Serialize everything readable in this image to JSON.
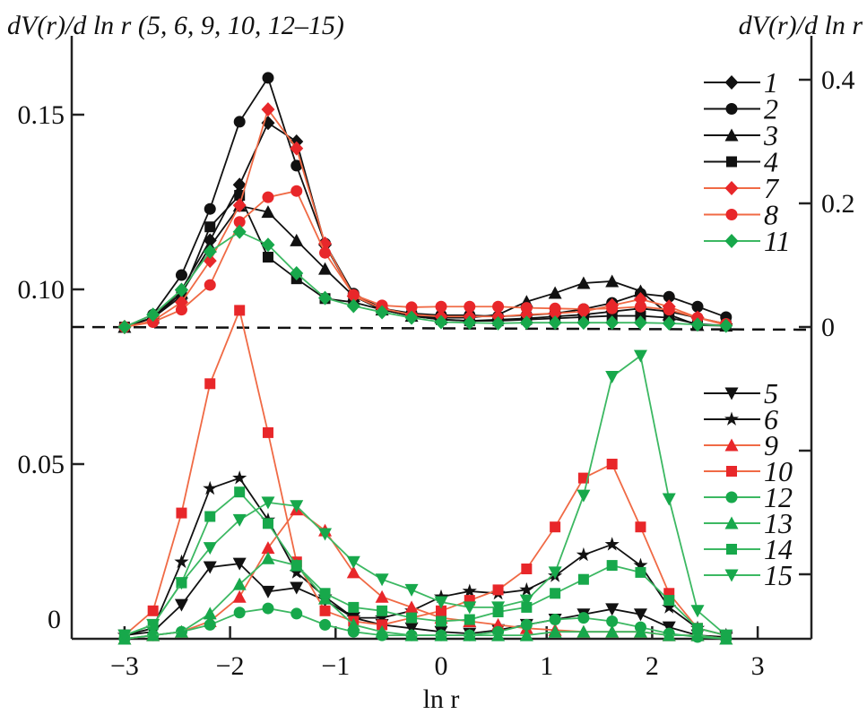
{
  "chart_data": {
    "type": "line",
    "title_left": "dV(r)/d ln r (5, 6, 9, 10, 12–15)",
    "title_right": "dV(r)/d ln r",
    "xlabel": "ln r",
    "xlim": [
      -3.5,
      3.5
    ],
    "x_ticks": [
      "−3",
      "−2",
      "−1",
      "0",
      "1",
      "2",
      "3"
    ],
    "x_tick_values": [
      -3,
      -2,
      -1,
      0,
      1,
      2,
      3
    ],
    "ylim_left": [
      0,
      0.17
    ],
    "y_ticks_left": [
      "0.15",
      "0.10",
      "0.05",
      "0"
    ],
    "y_tick_values_left": [
      0.15,
      0.1,
      0.05,
      0
    ],
    "ylim_right": [
      -0.5,
      0.41
    ],
    "y_ticks_right": [
      "0.4",
      "0.2",
      "0"
    ],
    "y_tick_values_right": [
      0.4,
      0.2,
      0
    ],
    "y_tick_unlabeled_right": [
      -0.2,
      -0.4
    ],
    "baseline_dashed_right": 0,
    "colors": {
      "black": "#111111",
      "red": "#e8272a",
      "red_line": "#f06a45",
      "green": "#17a84b",
      "green_line": "#3cb862"
    },
    "x": [
      -3.0,
      -2.73,
      -2.46,
      -2.19,
      -1.91,
      -1.64,
      -1.37,
      -1.1,
      -0.83,
      -0.56,
      -0.28,
      0.0,
      0.27,
      0.54,
      0.81,
      1.08,
      1.35,
      1.62,
      1.89,
      2.16,
      2.43,
      2.7
    ],
    "series": [
      {
        "name": "1",
        "axis": "right",
        "color": "black",
        "marker": "diamond",
        "values": [
          0,
          0.015,
          0.06,
          0.14,
          0.23,
          0.33,
          0.3,
          0.133,
          0.05,
          0.028,
          0.018,
          0.012,
          0.01,
          0.012,
          0.014,
          0.017,
          0.02,
          0.025,
          0.03,
          0.025,
          0.015,
          0.005
        ]
      },
      {
        "name": "2",
        "axis": "right",
        "color": "black",
        "marker": "circle",
        "values": [
          0,
          0.02,
          0.084,
          0.191,
          0.332,
          0.403,
          0.261,
          0.135,
          0.054,
          0.03,
          0.022,
          0.019,
          0.019,
          0.017,
          0.019,
          0.022,
          0.029,
          0.039,
          0.054,
          0.049,
          0.033,
          0.016
        ]
      },
      {
        "name": "3",
        "axis": "right",
        "color": "black",
        "marker": "triangle-up",
        "values": [
          0,
          0.015,
          0.055,
          0.13,
          0.196,
          0.186,
          0.14,
          0.094,
          0.05,
          0.028,
          0.018,
          0.015,
          0.015,
          0.02,
          0.041,
          0.055,
          0.071,
          0.074,
          0.058,
          0.02,
          0.003,
          0.002
        ]
      },
      {
        "name": "4",
        "axis": "right",
        "color": "black",
        "marker": "square",
        "values": [
          0,
          0.015,
          0.05,
          0.162,
          0.213,
          0.113,
          0.078,
          0.046,
          0.04,
          0.028,
          0.018,
          0.012,
          0.01,
          0.01,
          0.012,
          0.014,
          0.016,
          0.018,
          0.018,
          0.015,
          0.005,
          0.002
        ]
      },
      {
        "name": "7",
        "axis": "right",
        "color": "red",
        "marker": "diamond",
        "values": [
          0,
          0.01,
          0.04,
          0.107,
          0.197,
          0.352,
          0.289,
          0.135,
          0.05,
          0.03,
          0.02,
          0.017,
          0.017,
          0.017,
          0.02,
          0.022,
          0.025,
          0.035,
          0.045,
          0.033,
          0.015,
          0.003
        ]
      },
      {
        "name": "8",
        "axis": "right",
        "color": "red",
        "marker": "circle",
        "values": [
          0,
          0.008,
          0.028,
          0.068,
          0.17,
          0.21,
          0.22,
          0.12,
          0.052,
          0.035,
          0.032,
          0.033,
          0.033,
          0.033,
          0.031,
          0.03,
          0.029,
          0.03,
          0.033,
          0.028,
          0.015,
          0.005
        ]
      },
      {
        "name": "11",
        "axis": "right",
        "color": "green",
        "marker": "diamond",
        "values": [
          0,
          0.02,
          0.06,
          0.122,
          0.154,
          0.133,
          0.087,
          0.047,
          0.034,
          0.024,
          0.015,
          0.008,
          0.007,
          0.006,
          0.007,
          0.007,
          0.007,
          0.007,
          0.007,
          0.006,
          0.004,
          0.002
        ]
      },
      {
        "name": "5",
        "axis": "left",
        "color": "black",
        "marker": "triangle-down",
        "values": [
          0.001,
          0.002,
          0.0097,
          0.0205,
          0.0215,
          0.0135,
          0.0146,
          0.011,
          0.006,
          0.004,
          0.003,
          0.002,
          0.0015,
          0.0025,
          0.004,
          0.0055,
          0.007,
          0.0085,
          0.007,
          0.0033,
          0.001,
          0.0005
        ]
      },
      {
        "name": "6",
        "axis": "left",
        "color": "black",
        "marker": "star",
        "values": [
          0.001,
          0.003,
          0.022,
          0.043,
          0.046,
          0.034,
          0.019,
          0.012,
          0.006,
          0.006,
          0.008,
          0.012,
          0.0136,
          0.013,
          0.014,
          0.018,
          0.024,
          0.027,
          0.021,
          0.009,
          0.003,
          0.001
        ]
      },
      {
        "name": "9",
        "axis": "left",
        "color": "red",
        "marker": "triangle-up",
        "values": [
          0,
          0.001,
          0.002,
          0.005,
          0.012,
          0.026,
          0.037,
          0.031,
          0.019,
          0.012,
          0.009,
          0.006,
          0.005,
          0.004,
          0.003,
          0.0025,
          0.002,
          0.002,
          0.002,
          0.001,
          0.001,
          0
        ]
      },
      {
        "name": "10",
        "axis": "left",
        "color": "red",
        "marker": "square",
        "values": [
          0.001,
          0.008,
          0.036,
          0.073,
          0.094,
          0.059,
          0.022,
          0.008,
          0.005,
          0.004,
          0.006,
          0.008,
          0.011,
          0.014,
          0.02,
          0.032,
          0.046,
          0.05,
          0.032,
          0.013,
          0.003,
          0.001
        ]
      },
      {
        "name": "12",
        "axis": "left",
        "color": "green",
        "marker": "circle",
        "values": [
          0,
          0.001,
          0.002,
          0.004,
          0.0075,
          0.0087,
          0.0072,
          0.004,
          0.002,
          0.001,
          0.001,
          0.001,
          0.001,
          0.002,
          0.004,
          0.0055,
          0.006,
          0.005,
          0.0033,
          0.0015,
          0.0005,
          0
        ]
      },
      {
        "name": "13",
        "axis": "left",
        "color": "green",
        "marker": "triangle-up",
        "values": [
          0,
          0.001,
          0.002,
          0.0072,
          0.0156,
          0.023,
          0.021,
          0.0115,
          0.004,
          0.002,
          0.001,
          0.001,
          0.001,
          0.001,
          0.001,
          0.002,
          0.002,
          0.002,
          0.002,
          0.001,
          0.001,
          0
        ]
      },
      {
        "name": "14",
        "axis": "left",
        "color": "green",
        "marker": "square",
        "values": [
          0.001,
          0.004,
          0.016,
          0.035,
          0.042,
          0.033,
          0.021,
          0.013,
          0.009,
          0.008,
          0.006,
          0.005,
          0.0055,
          0.0077,
          0.009,
          0.013,
          0.017,
          0.021,
          0.019,
          0.011,
          0.003,
          0.001
        ]
      },
      {
        "name": "15",
        "axis": "left",
        "color": "green",
        "marker": "triangle-down",
        "values": [
          0.001,
          0.004,
          0.016,
          0.026,
          0.034,
          0.039,
          0.038,
          0.03,
          0.022,
          0.017,
          0.014,
          0.0105,
          0.009,
          0.009,
          0.011,
          0.019,
          0.041,
          0.075,
          0.081,
          0.04,
          0.008,
          0.001
        ]
      }
    ],
    "legend_top": [
      "1",
      "2",
      "3",
      "4",
      "7",
      "8",
      "11"
    ],
    "legend_bottom": [
      "5",
      "6",
      "9",
      "10",
      "12",
      "13",
      "14",
      "15"
    ],
    "legend_placement": "right"
  }
}
